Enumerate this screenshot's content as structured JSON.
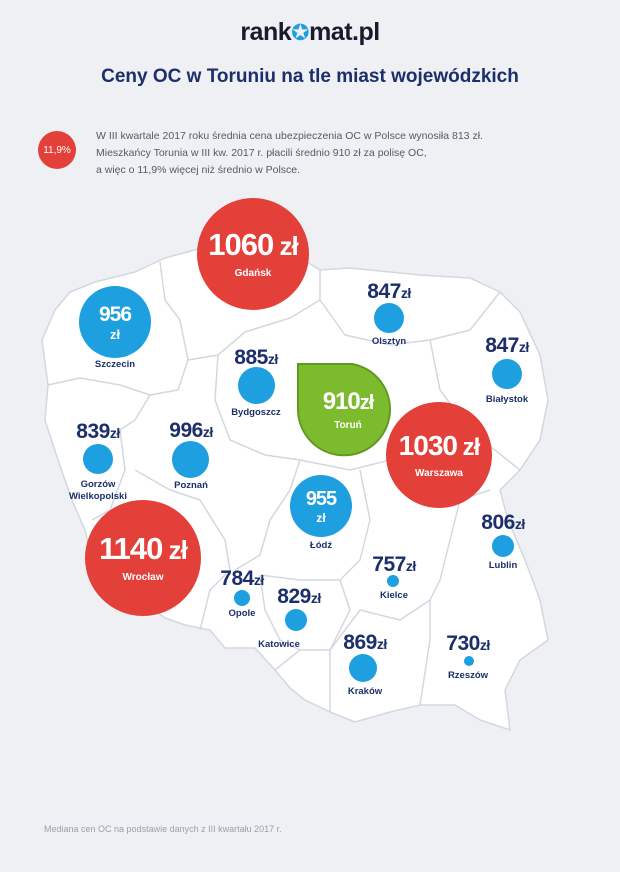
{
  "header": {
    "logo_left": "rank",
    "logo_right": "mat.pl",
    "title": "Ceny OC w Toruniu na tle miast wojewódzkich"
  },
  "intro": {
    "badge": "11,9%",
    "lines": [
      "W III kwartale 2017 roku średnia cena ubezpieczenia OC w Polsce wynosiła 813 zł.",
      "Mieszkańcy Torunia w III kw. 2017 r. płacili średnio 910 zł za polisę OC,",
      "a więc o 11,9% więcej niż średnio w Polsce."
    ]
  },
  "footnote": "Mediana cen OC na podstawie danych z III kwartału 2017 r.",
  "colors": {
    "blue": "#1e9fe0",
    "red": "#e3403a",
    "green": "#7dbb2e",
    "navy": "#1c2f6b"
  },
  "cities": {
    "gdansk": {
      "name": "Gdańsk",
      "value": "1060",
      "unit": "zł"
    },
    "szczecin": {
      "name": "Szczecin",
      "value": "956",
      "unit": "zł"
    },
    "olsztyn": {
      "name": "Olsztyn",
      "value": "847",
      "unit": "zł"
    },
    "bydgoszcz": {
      "name": "Bydgoszcz",
      "value": "885",
      "unit": "zł"
    },
    "torun": {
      "name": "Toruń",
      "value": "910",
      "unit": "zł"
    },
    "bialystok": {
      "name": "Białystok",
      "value": "847",
      "unit": "zł"
    },
    "gorzow": {
      "name": "Gorzów\nWielkopolski",
      "value": "839",
      "unit": "zł"
    },
    "poznan": {
      "name": "Poznań",
      "value": "996",
      "unit": "zł"
    },
    "warszawa": {
      "name": "Warszawa",
      "value": "1030",
      "unit": "zł"
    },
    "lodz": {
      "name": "Łódź",
      "value": "955",
      "unit": "zł"
    },
    "lublin": {
      "name": "Lublin",
      "value": "806",
      "unit": "zł"
    },
    "wroclaw": {
      "name": "Wrocław",
      "value": "1140",
      "unit": "zł"
    },
    "opole": {
      "name": "Opole",
      "value": "784",
      "unit": "zł"
    },
    "katowice": {
      "name": "Katowice",
      "value": "829",
      "unit": "zł"
    },
    "kielce": {
      "name": "Kielce",
      "value": "757",
      "unit": "zł"
    },
    "krakow": {
      "name": "Kraków",
      "value": "869",
      "unit": "zł"
    },
    "rzeszow": {
      "name": "Rzeszów",
      "value": "730",
      "unit": "zł"
    }
  }
}
